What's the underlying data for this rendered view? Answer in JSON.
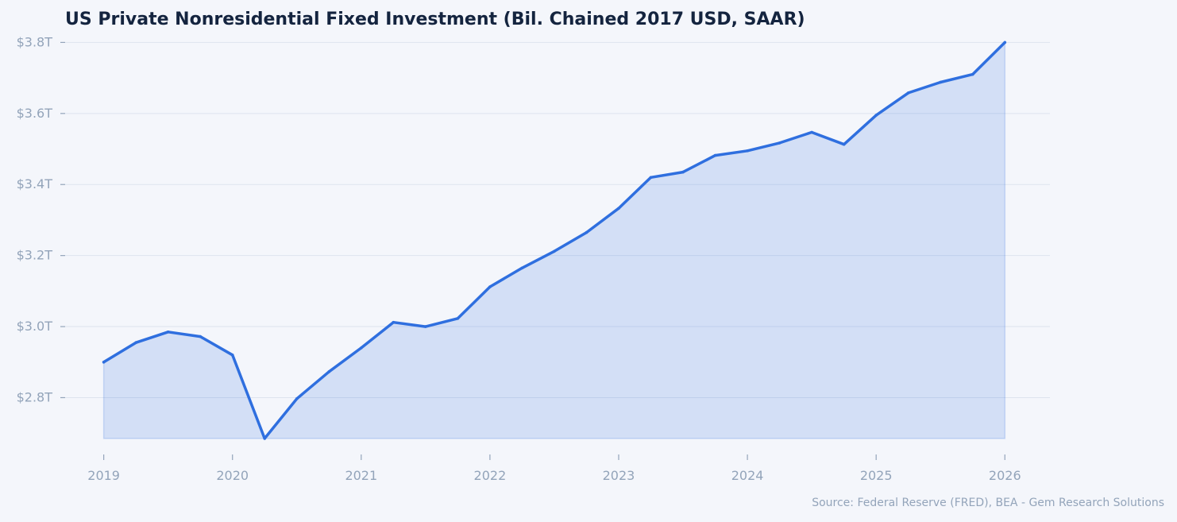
{
  "chart_data": {
    "type": "area",
    "title": "US Private Nonresidential Fixed Investment (Bil. Chained 2017 USD, SAAR)",
    "xlabel": "",
    "ylabel": "",
    "source": "Source: Federal Reserve (FRED), BEA - Gem Research Solutions",
    "xlim": [
      2018.7,
      2026.35
    ],
    "ylim": [
      2640,
      3830
    ],
    "x_ticks": [
      {
        "value": 2019,
        "label": "2019"
      },
      {
        "value": 2020,
        "label": "2020"
      },
      {
        "value": 2021,
        "label": "2021"
      },
      {
        "value": 2022,
        "label": "2022"
      },
      {
        "value": 2023,
        "label": "2023"
      },
      {
        "value": 2024,
        "label": "2024"
      },
      {
        "value": 2025,
        "label": "2025"
      },
      {
        "value": 2026,
        "label": "2026"
      }
    ],
    "y_ticks": [
      {
        "value": 2800,
        "label": "$2.8T"
      },
      {
        "value": 3000,
        "label": "$3.0T"
      },
      {
        "value": 3200,
        "label": "$3.2T"
      },
      {
        "value": 3400,
        "label": "$3.4T"
      },
      {
        "value": 3600,
        "label": "$3.6T"
      },
      {
        "value": 3800,
        "label": "$3.8T"
      }
    ],
    "grid": true,
    "series": [
      {
        "x": [
          2019.0,
          2019.25,
          2019.5,
          2019.75,
          2020.0,
          2020.25,
          2020.5,
          2020.75,
          2021.0,
          2021.25,
          2021.5,
          2021.75,
          2022.0,
          2022.25,
          2022.5,
          2022.75,
          2023.0,
          2023.25,
          2023.5,
          2023.75,
          2024.0,
          2024.25,
          2024.5,
          2024.75,
          2025.0,
          2025.25,
          2025.5,
          2025.75,
          2026.0
        ],
        "values": [
          2900,
          2955,
          2985,
          2972,
          2920,
          2685,
          2797,
          2873,
          2940,
          3012,
          3000,
          3023,
          3112,
          3165,
          3212,
          3265,
          3333,
          3420,
          3435,
          3482,
          3495,
          3517,
          3547,
          3513,
          3595,
          3658,
          3688,
          3710,
          3800
        ]
      }
    ],
    "colors": {
      "line": "#2f6fdf",
      "fill": "#2f6fdf",
      "grid": "#dde3ee",
      "tick_text": "#93a4ba",
      "title": "#14243f"
    }
  }
}
